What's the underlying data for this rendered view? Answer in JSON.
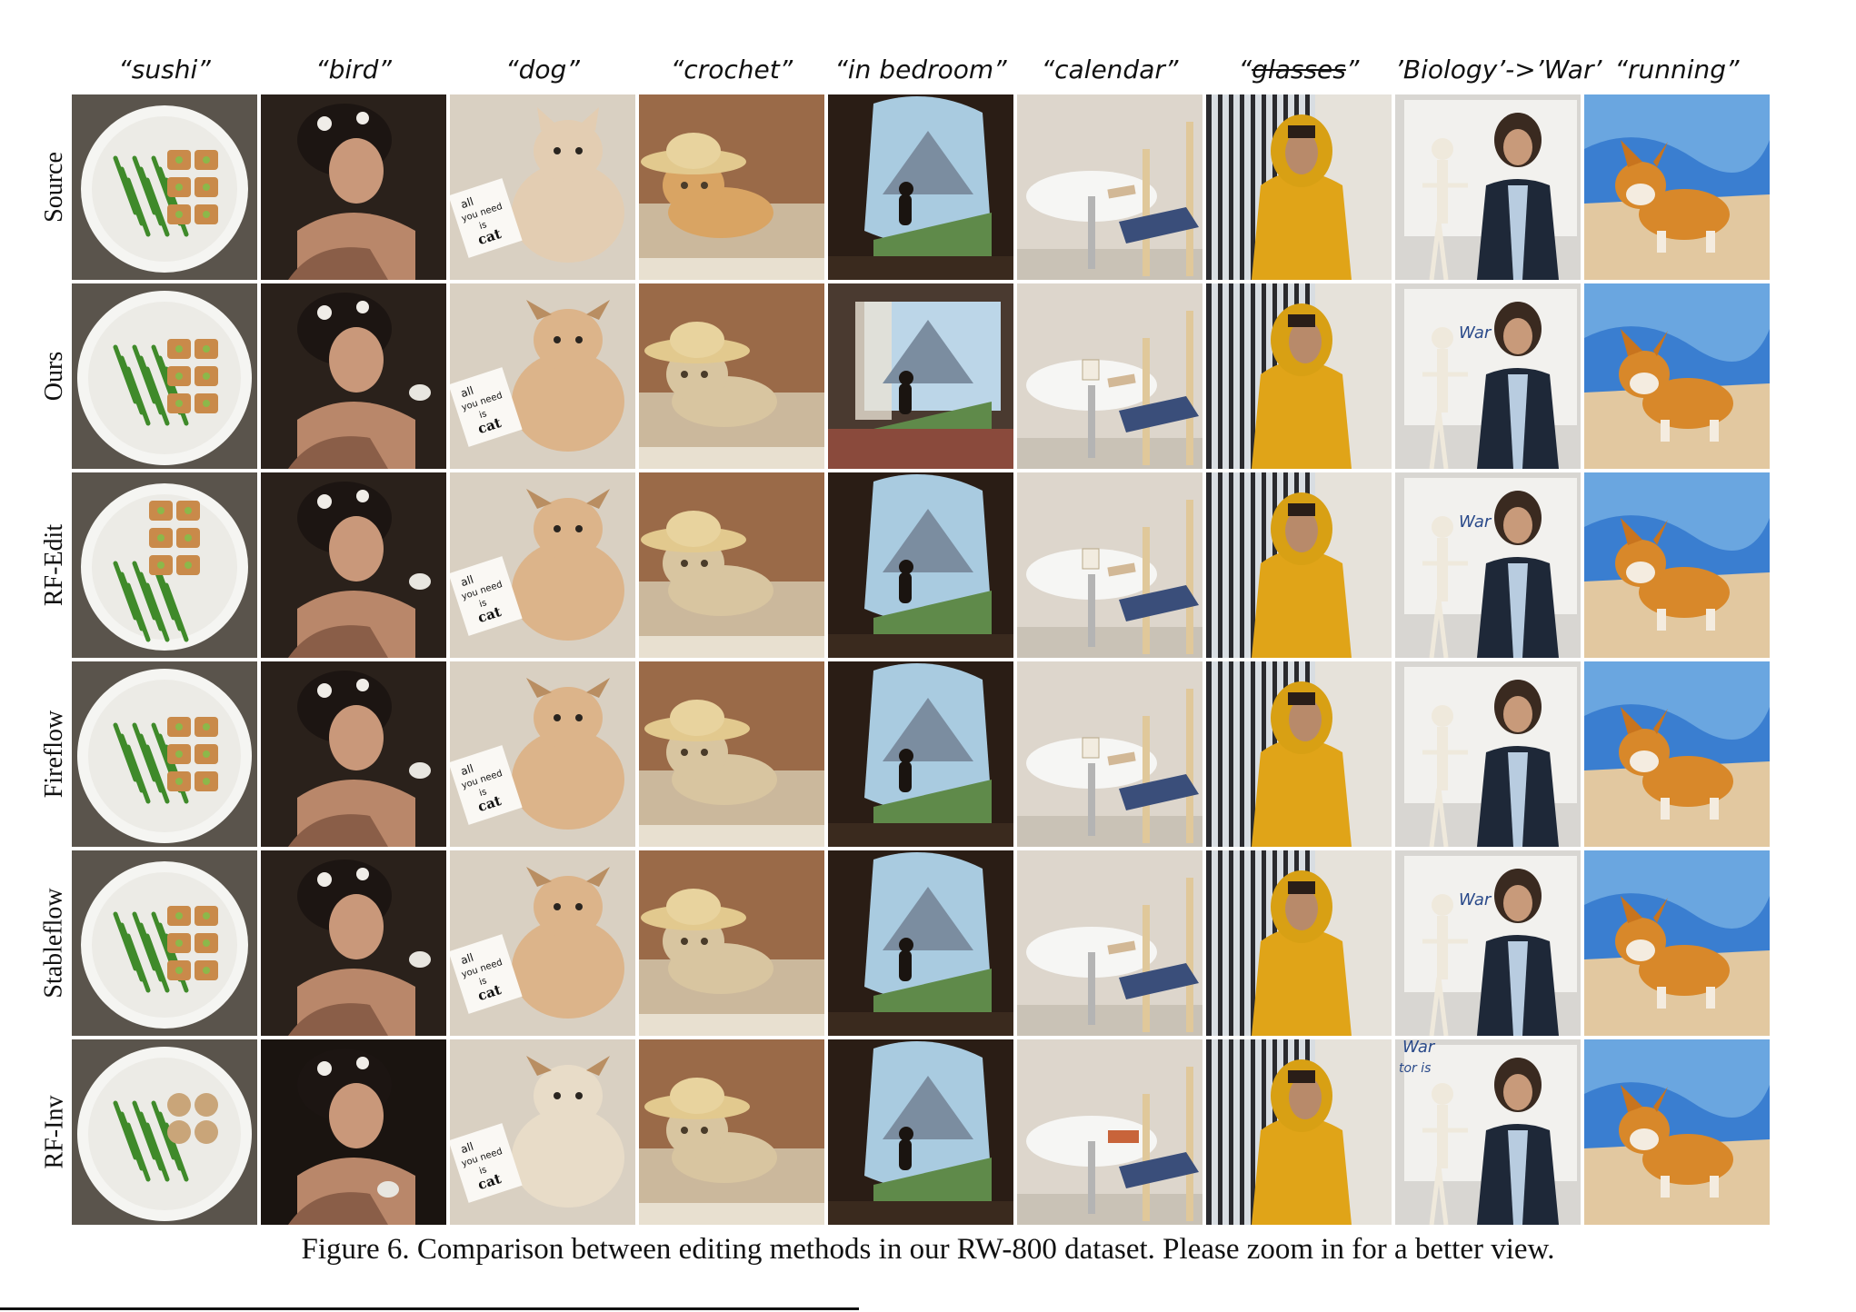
{
  "columns": [
    {
      "key": "sushi",
      "header": "“sushi”"
    },
    {
      "key": "bird",
      "header": "“bird”"
    },
    {
      "key": "dog",
      "header": "“dog”"
    },
    {
      "key": "crochet",
      "header": "“crochet”"
    },
    {
      "key": "bedroom",
      "header": "“in bedroom”"
    },
    {
      "key": "calendar",
      "header": "“calendar”"
    },
    {
      "key": "glasses",
      "header_prefix": "“",
      "header_struck": "glasses",
      "header_suffix": "”"
    },
    {
      "key": "war",
      "header": "’Biology’->’War’"
    },
    {
      "key": "running",
      "header": "“running”"
    }
  ],
  "rows": [
    "Source",
    "Ours",
    "RF-Edit",
    "Fireflow",
    "Stableflow",
    "RF-Inv"
  ],
  "card_texts": {
    "line1": "all",
    "line2": "you need",
    "line3": "is",
    "line4": "cat"
  },
  "board_texts": {
    "war": "War",
    "tor_is": "tor is"
  },
  "caption": "Figure 6. Comparison between editing methods in our RW-800 dataset. Please zoom in for a better view."
}
